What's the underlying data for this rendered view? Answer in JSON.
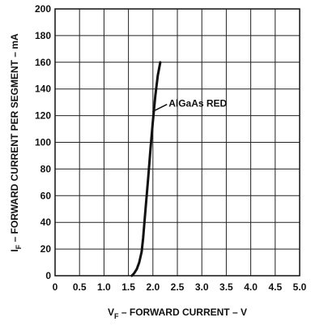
{
  "chart_data": {
    "type": "line",
    "title": "",
    "xlabel": {
      "main": "V",
      "sub": "F",
      "rest": " – FORWARD CURRENT – V"
    },
    "ylabel": {
      "main": "I",
      "sub": "F",
      "rest": " – FORWARD CURRENT PER SEGMENT – mA"
    },
    "xlim": [
      0,
      5.0
    ],
    "ylim": [
      0,
      200
    ],
    "x_ticks": [
      "0",
      "0.5",
      "1.0",
      "1.5",
      "2.0",
      "2.5",
      "3.0",
      "3.5",
      "4.0",
      "4.5",
      "5.0"
    ],
    "y_ticks": [
      "0",
      "20",
      "40",
      "60",
      "80",
      "100",
      "120",
      "140",
      "160",
      "180",
      "200"
    ],
    "grid": true,
    "series": [
      {
        "name": "AlGaAs RED",
        "x": [
          1.57,
          1.62,
          1.67,
          1.72,
          1.77,
          1.8,
          1.85,
          1.9,
          1.95,
          2.0,
          2.05,
          2.1,
          2.15
        ],
        "y": [
          0,
          2,
          5,
          10,
          18,
          28,
          50,
          72,
          95,
          116,
          135,
          150,
          160
        ]
      }
    ],
    "annotations": [
      {
        "text": "AlGaAs RED",
        "series": "AlGaAs RED"
      }
    ]
  }
}
